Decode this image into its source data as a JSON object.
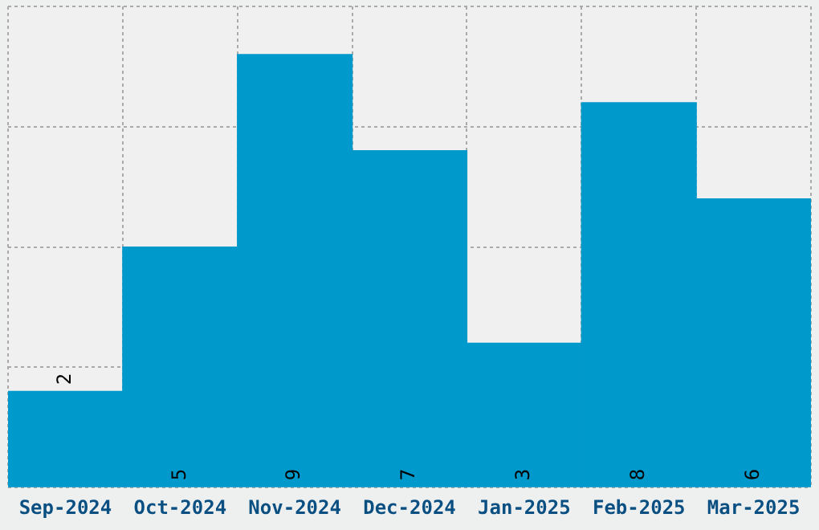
{
  "chart_data": {
    "type": "bar",
    "categories": [
      "Sep-2024",
      "Oct-2024",
      "Nov-2024",
      "Dec-2024",
      "Jan-2025",
      "Feb-2025",
      "Mar-2025"
    ],
    "values": [
      2,
      5,
      9,
      7,
      3,
      8,
      6
    ],
    "color": "#0099cc",
    "ylim": [
      0,
      10
    ],
    "yticks": [
      {
        "value": 0,
        "label": null
      },
      {
        "value": 2.5,
        "label": null
      },
      {
        "value": 5,
        "label": null
      },
      {
        "value": 7.5,
        "label": null
      },
      {
        "value": 10,
        "label": null
      }
    ],
    "tick_labels": "x",
    "grid": true,
    "data_labels": true
  }
}
